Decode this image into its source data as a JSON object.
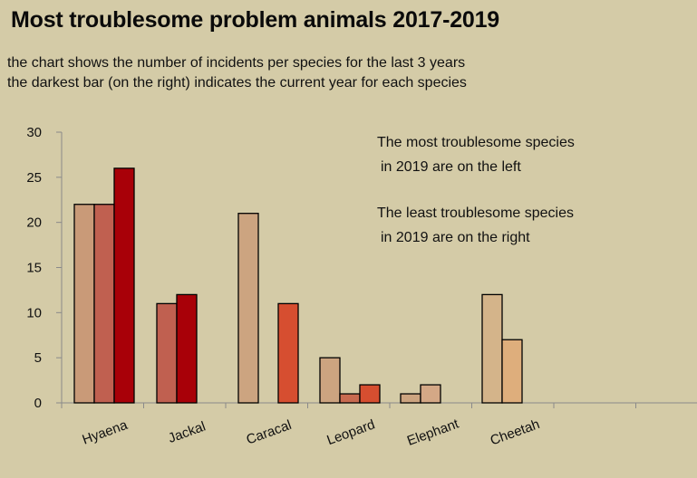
{
  "title": "Most troublesome problem animals 2017-2019",
  "subtitle_lines": [
    "the chart shows the number of incidents per species for the last 3 years",
    "the darkest bar (on the right) indicates the current year for each species"
  ],
  "annotations": [
    "The most troublesome species",
    "in 2019 are on the left",
    "The least troublesome species",
    "in 2019 are on the right"
  ],
  "chart_data": {
    "type": "bar",
    "title": "Most troublesome problem animals 2017-2019",
    "xlabel": "",
    "ylabel": "",
    "ylim": [
      0,
      30
    ],
    "yticks": [
      0,
      5,
      10,
      15,
      20,
      25,
      30
    ],
    "grid": false,
    "categories": [
      "Hyaena",
      "Jackal",
      "Caracal",
      "Leopard",
      "Elephant",
      "Cheetah",
      "",
      ""
    ],
    "bar_groups": [
      {
        "category": "Hyaena",
        "bars": [
          {
            "value": 22,
            "color": "#c99a78"
          },
          {
            "value": 22,
            "color": "#c06050"
          },
          {
            "value": 26,
            "color": "#a80008"
          }
        ]
      },
      {
        "category": "Jackal",
        "bars": [
          {
            "value": 11,
            "color": "#c06050"
          },
          {
            "value": 12,
            "color": "#a80008"
          }
        ]
      },
      {
        "category": "Caracal",
        "bars": [
          {
            "value": 21,
            "color": "#cca480"
          },
          {
            "value": 11,
            "color": "#d64e30",
            "gap_before": 1
          }
        ]
      },
      {
        "category": "Leopard",
        "bars": [
          {
            "value": 5,
            "color": "#cca480"
          },
          {
            "value": 1,
            "color": "#c86a50"
          },
          {
            "value": 2,
            "color": "#d64e30"
          }
        ]
      },
      {
        "category": "Elephant",
        "bars": [
          {
            "value": 1,
            "color": "#cca480"
          },
          {
            "value": 2,
            "color": "#d4a886"
          }
        ]
      },
      {
        "category": "Cheetah",
        "bars": [
          {
            "value": 12,
            "color": "#d4b48a"
          },
          {
            "value": 7,
            "color": "#deae7c"
          }
        ]
      },
      {
        "category": "",
        "bars": []
      },
      {
        "category": "",
        "bars": []
      }
    ]
  }
}
